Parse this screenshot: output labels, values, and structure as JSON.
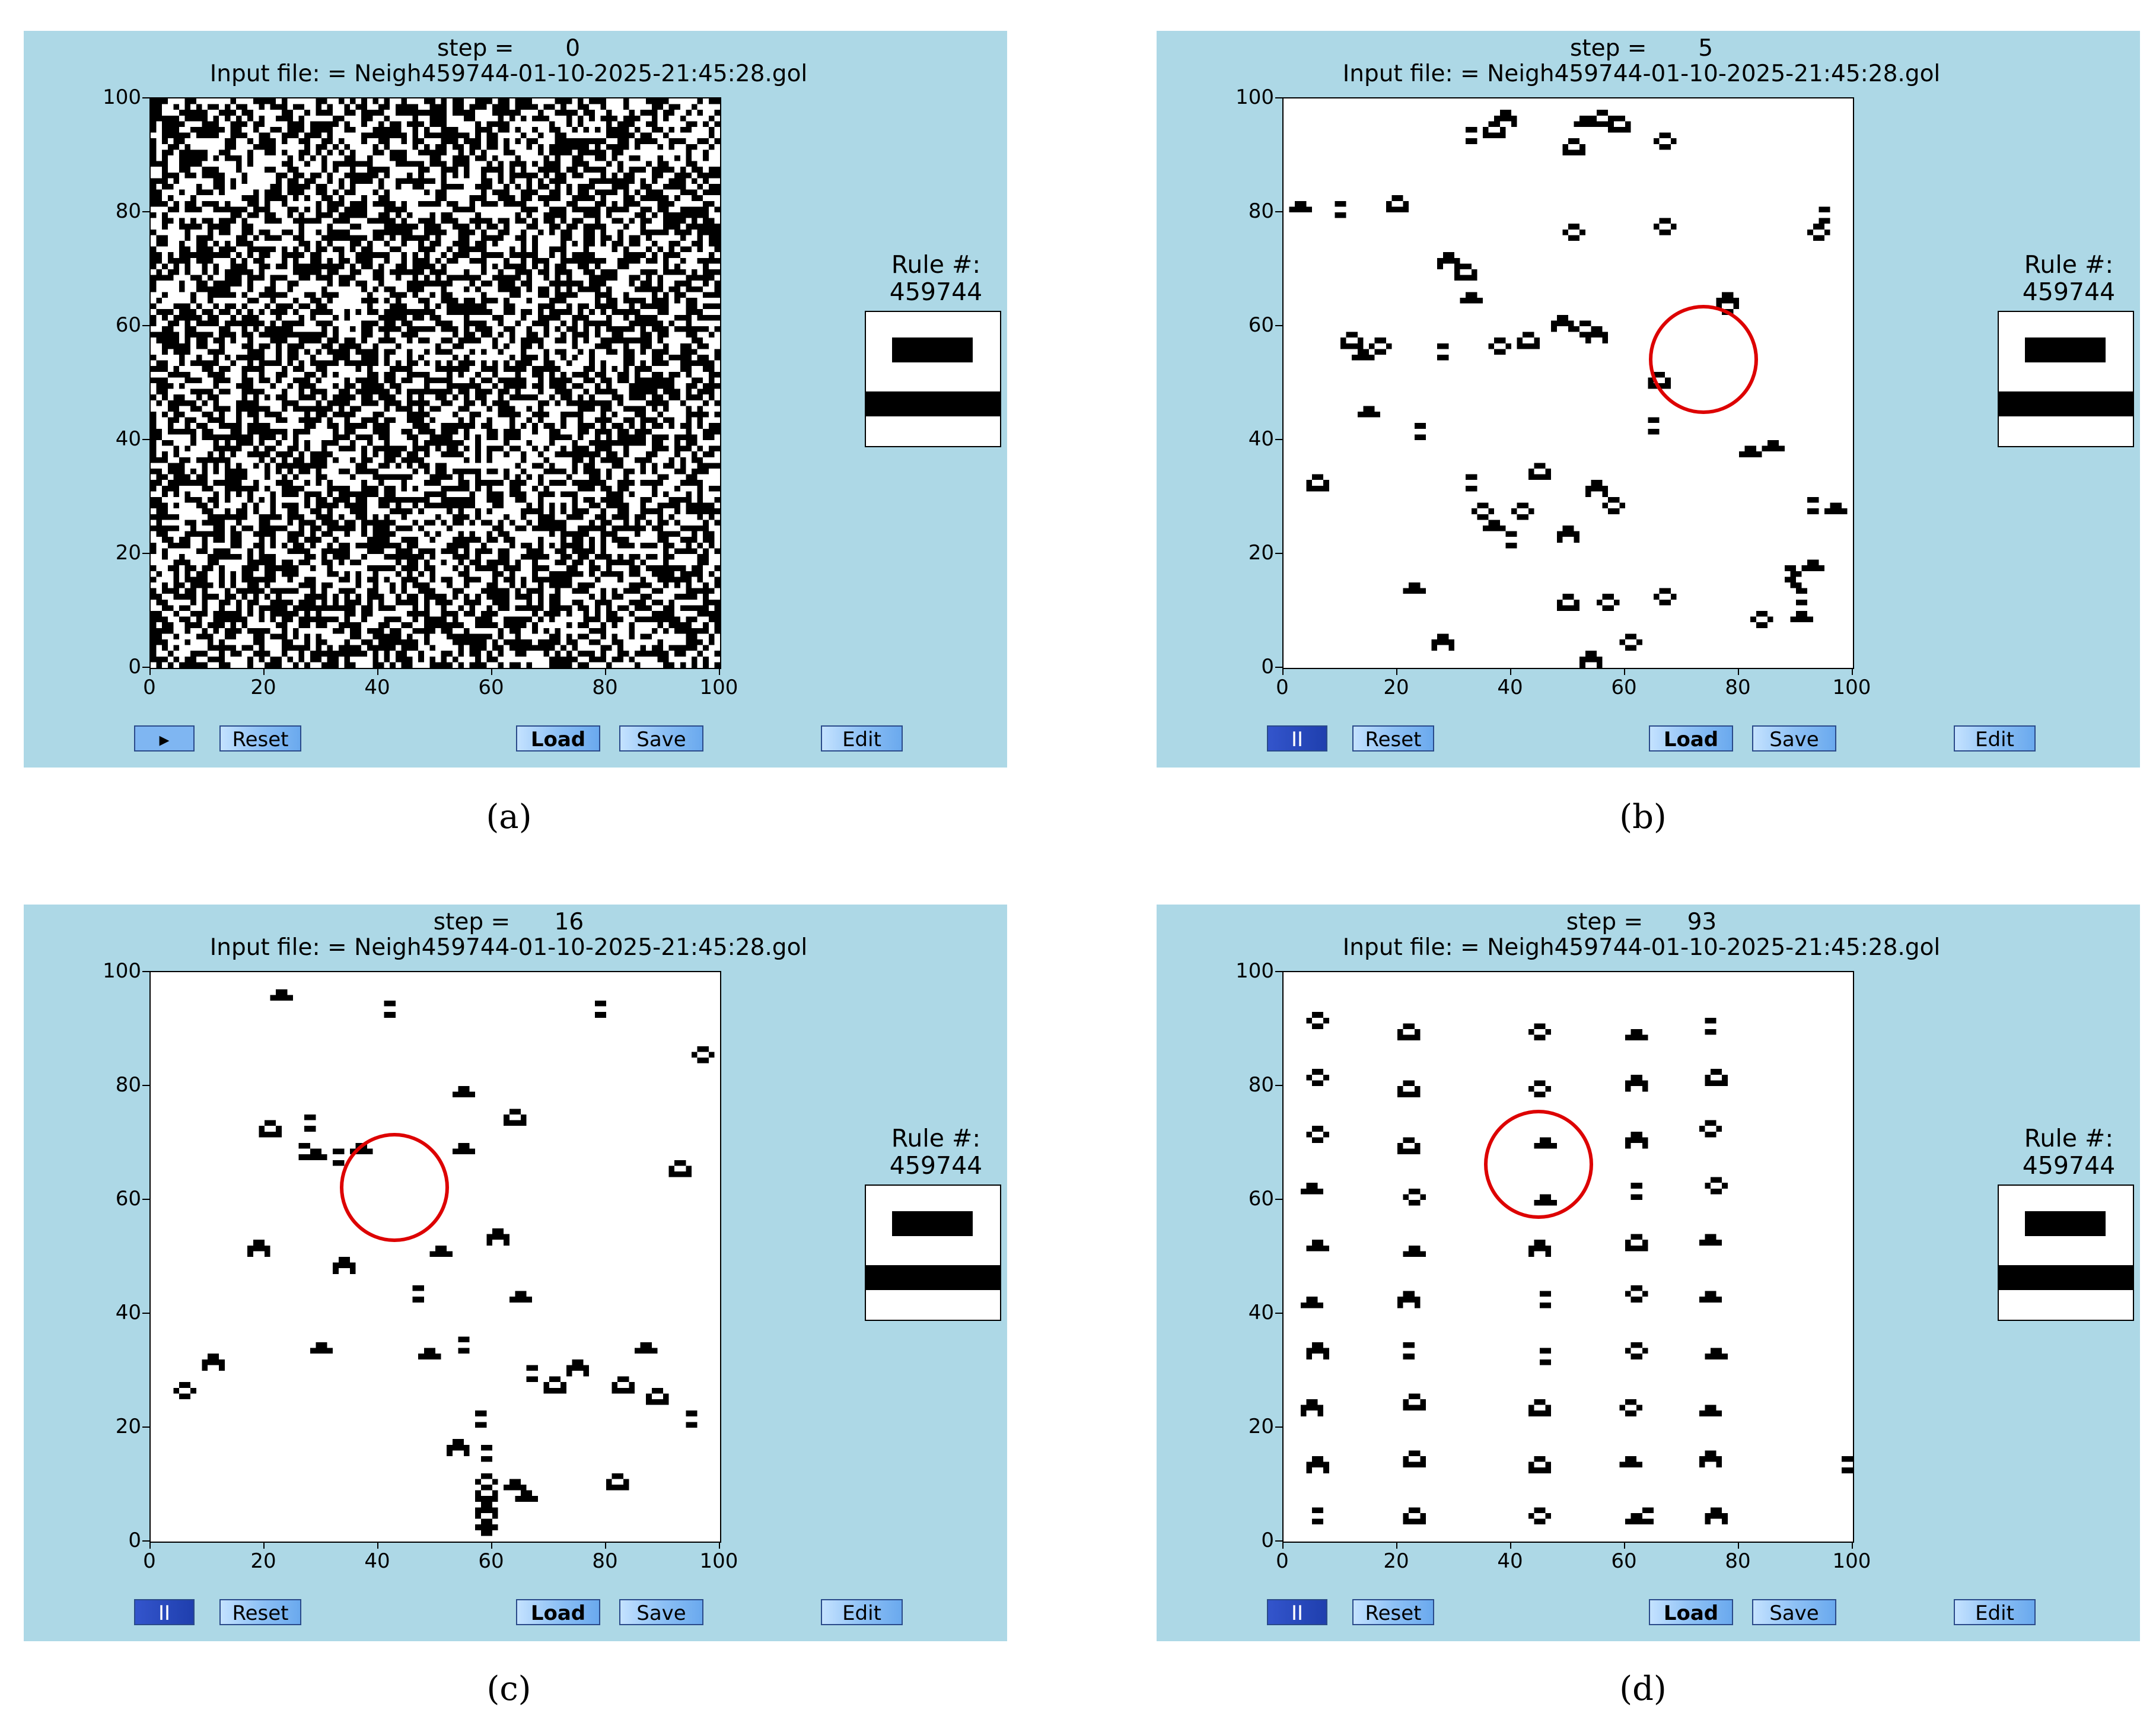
{
  "panels": [
    {
      "id": "a",
      "step_label": "step =       0",
      "input_file": "Input file: = Neigh459744-01-10-2025-21:45:28.gol",
      "rule_label": "Rule #:",
      "rule_number": "459744",
      "y_ticks": [
        "100",
        "80",
        "60",
        "40",
        "20",
        "0"
      ],
      "x_ticks": [
        "0",
        "20",
        "40",
        "60",
        "80",
        "100"
      ],
      "buttons": {
        "play_pause": "▸",
        "reset": "Reset",
        "load": "Load",
        "save": "Save",
        "edit": "Edit"
      },
      "play_state": "play",
      "caption": "(a)",
      "grid_state": "random-dense"
    },
    {
      "id": "b",
      "step_label": "step =       5",
      "input_file": "Input file: = Neigh459744-01-10-2025-21:45:28.gol",
      "rule_label": "Rule #:",
      "rule_number": "459744",
      "y_ticks": [
        "100",
        "80",
        "60",
        "40",
        "20",
        "0"
      ],
      "x_ticks": [
        "0",
        "20",
        "40",
        "60",
        "80",
        "100"
      ],
      "buttons": {
        "play_pause": "II",
        "reset": "Reset",
        "load": "Load",
        "save": "Save",
        "edit": "Edit"
      },
      "play_state": "pause",
      "caption": "(b)",
      "grid_state": "sparse",
      "highlight": {
        "x": 74,
        "y": 54
      }
    },
    {
      "id": "c",
      "step_label": "step =      16",
      "input_file": "Input file: = Neigh459744-01-10-2025-21:45:28.gol",
      "rule_label": "Rule #:",
      "rule_number": "459744",
      "y_ticks": [
        "100",
        "80",
        "60",
        "40",
        "20",
        "0"
      ],
      "x_ticks": [
        "0",
        "20",
        "40",
        "60",
        "80",
        "100"
      ],
      "buttons": {
        "play_pause": "II",
        "reset": "Reset",
        "load": "Load",
        "save": "Save",
        "edit": "Edit"
      },
      "play_state": "pause",
      "caption": "(c)",
      "grid_state": "gliders",
      "highlight": {
        "x": 43,
        "y": 62
      }
    },
    {
      "id": "d",
      "step_label": "step =      93",
      "input_file": "Input file: = Neigh459744-01-10-2025-21:45:28.gol",
      "rule_label": "Rule #:",
      "rule_number": "459744",
      "y_ticks": [
        "100",
        "80",
        "60",
        "40",
        "20",
        "0"
      ],
      "x_ticks": [
        "0",
        "20",
        "40",
        "60",
        "80",
        "100"
      ],
      "buttons": {
        "play_pause": "II",
        "reset": "Reset",
        "load": "Load",
        "save": "Save",
        "edit": "Edit"
      },
      "play_state": "pause",
      "caption": "(d)",
      "grid_state": "columns",
      "highlight": {
        "x": 45,
        "y": 66
      }
    }
  ]
}
